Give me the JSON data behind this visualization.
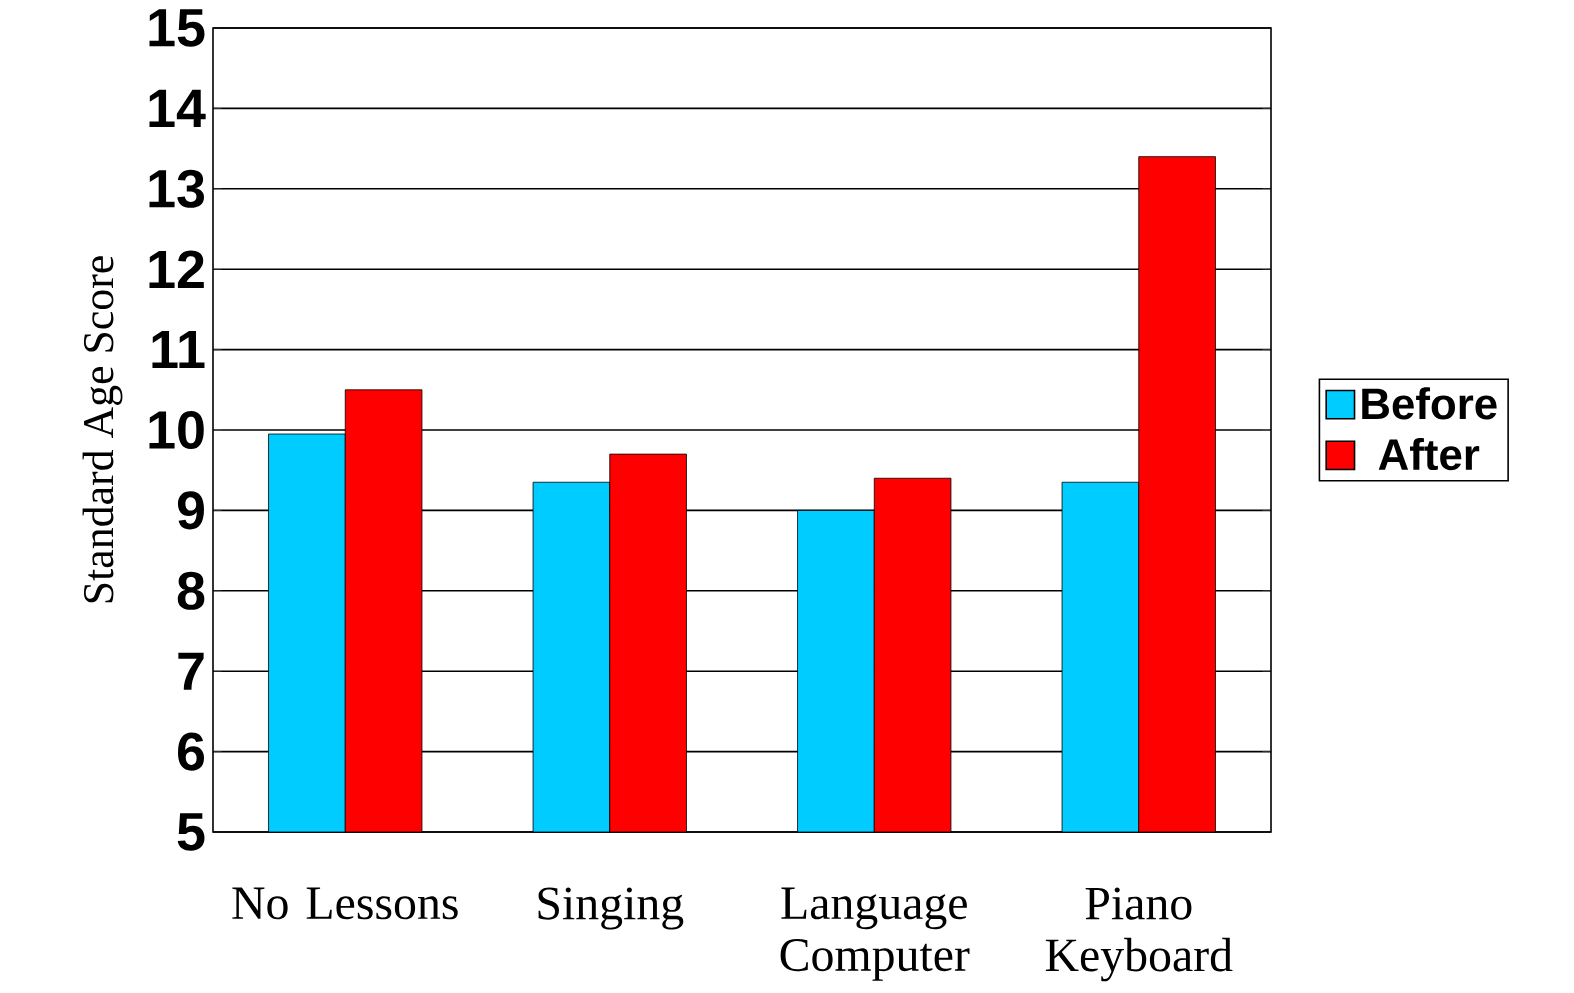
{
  "chart_data": {
    "type": "bar",
    "ylabel": "Standard Age Score",
    "categories": [
      "No Lessons",
      "Singing",
      "Language Computer",
      "Piano Keyboard"
    ],
    "series": [
      {
        "name": "Before",
        "color": "#00ccff",
        "values": [
          9.95,
          9.35,
          9.0,
          9.35
        ]
      },
      {
        "name": "After",
        "color": "#ff0000",
        "values": [
          10.5,
          9.7,
          9.4,
          13.4
        ]
      }
    ],
    "ylim": [
      5,
      15
    ],
    "yticks": [
      5,
      6,
      7,
      8,
      9,
      10,
      11,
      12,
      13,
      14,
      15
    ],
    "grid": "y",
    "legend": "right"
  }
}
